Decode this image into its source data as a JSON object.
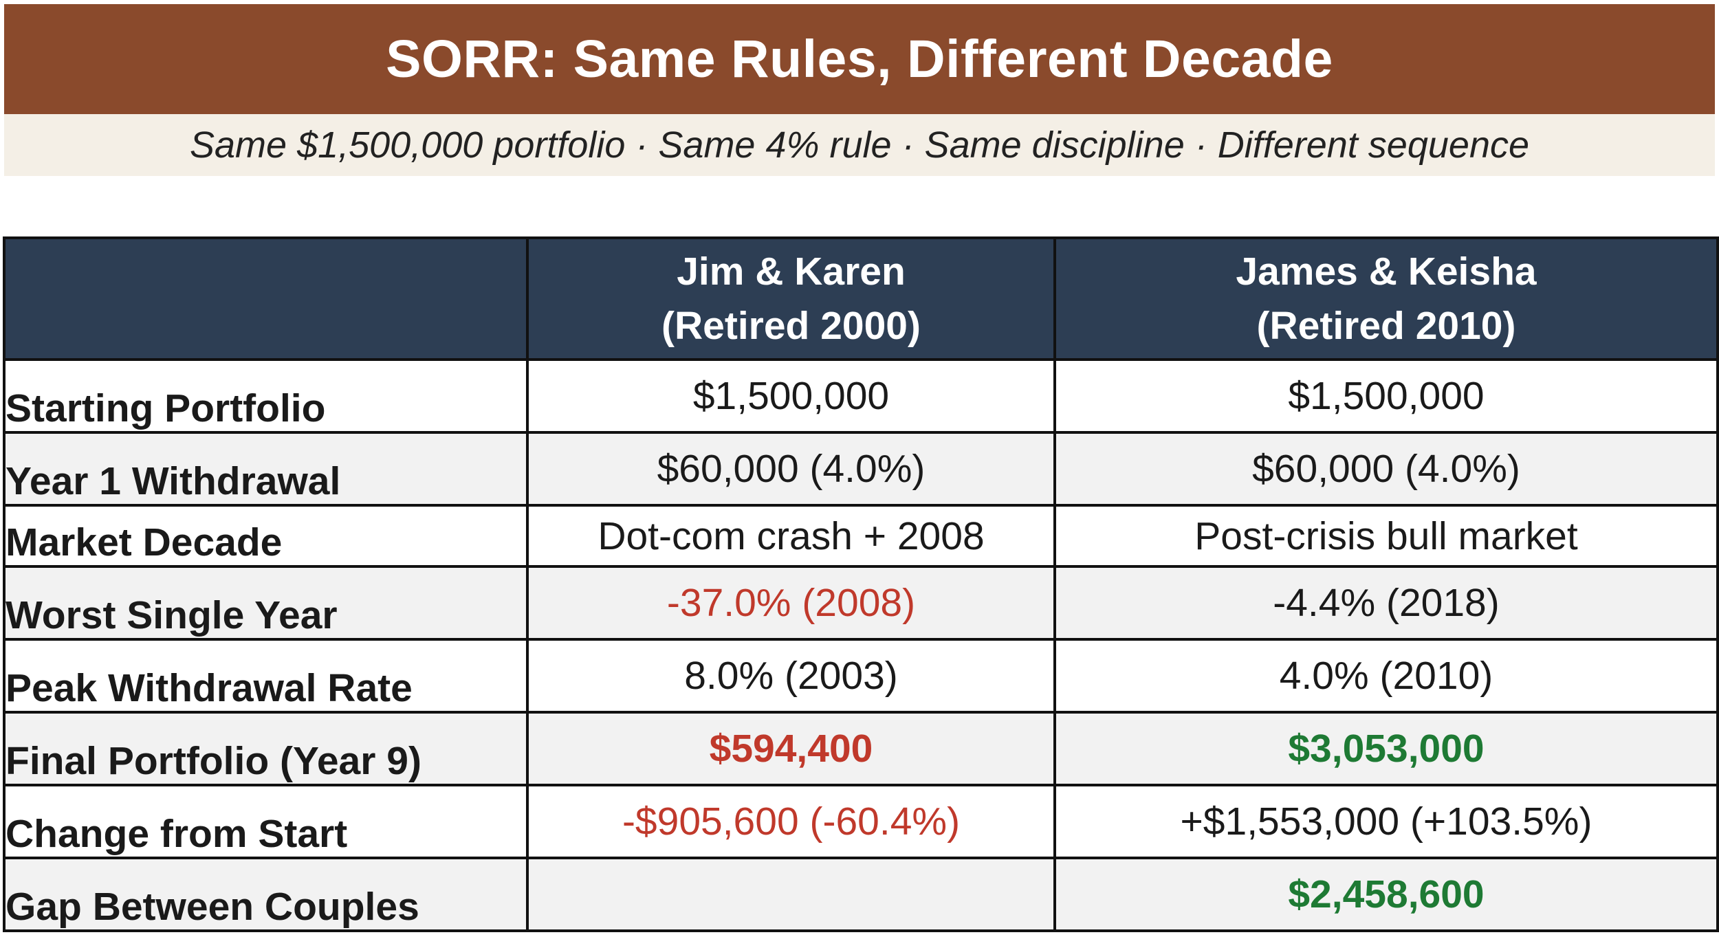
{
  "header": {
    "title": "SORR: Same Rules, Different Decade",
    "subtitle": "Same $1,500,000 portfolio · Same 4% rule · Same discipline · Different sequence"
  },
  "table": {
    "columns": [
      {
        "line1": "",
        "line2": ""
      },
      {
        "line1": "Jim & Karen",
        "line2": "(Retired 2000)"
      },
      {
        "line1": "James & Keisha",
        "line2": "(Retired 2010)"
      }
    ],
    "rows": [
      {
        "label": "Starting Portfolio",
        "a": "$1,500,000",
        "b": "$1,500,000"
      },
      {
        "label": "Year 1 Withdrawal",
        "a": "$60,000 (4.0%)",
        "b": "$60,000 (4.0%)"
      },
      {
        "label": "Market Decade",
        "a": "Dot-com crash + 2008",
        "b": "Post-crisis bull market"
      },
      {
        "label": "Worst Single Year",
        "a": "-37.0% (2008)",
        "b": "-4.4% (2018)"
      },
      {
        "label": "Peak Withdrawal Rate",
        "a": "8.0% (2003)",
        "b": "4.0% (2010)"
      },
      {
        "label": "Final Portfolio (Year 9)",
        "a": "$594,400",
        "b": "$3,053,000"
      },
      {
        "label": "Change from Start",
        "a": "-$905,600 (-60.4%)",
        "b": "+$1,553,000 (+103.5%)"
      },
      {
        "label": "Gap Between Couples",
        "a": "",
        "b": "$2,458,600"
      }
    ]
  },
  "colors": {
    "title_bar": "#8a4a2c",
    "subtitle_bar": "#f4efe6",
    "table_header": "#2d3e54",
    "negative": "#c0392b",
    "positive": "#1e7a34"
  }
}
